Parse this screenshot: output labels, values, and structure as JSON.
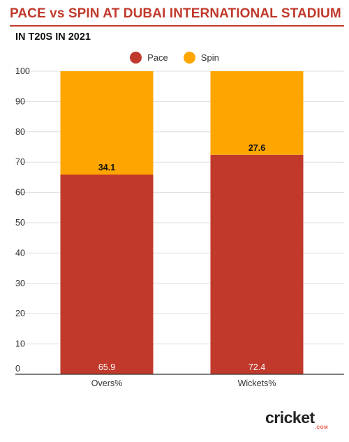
{
  "title": "PACE vs SPIN AT DUBAI INTERNATIONAL STADIUM",
  "subtitle": "IN T20S IN 2021",
  "brand": {
    "wordmark": "cricket",
    "sub": ".COM"
  },
  "colors": {
    "pace": "#c0392b",
    "spin": "#ffa500",
    "accent": "#c0392b"
  },
  "chart_data": {
    "type": "bar",
    "stacked": true,
    "categories": [
      "Overs%",
      "Wickets%"
    ],
    "series": [
      {
        "name": "Pace",
        "values": [
          65.9,
          72.4
        ],
        "color": "#c0392b"
      },
      {
        "name": "Spin",
        "values": [
          34.1,
          27.6
        ],
        "color": "#ffa500"
      }
    ],
    "data_labels": {
      "Pace": [
        "65.9",
        "72.4"
      ],
      "Spin": [
        "34.1",
        "27.6"
      ]
    },
    "ylim": [
      0,
      100
    ],
    "yticks": [
      0,
      10,
      20,
      30,
      40,
      50,
      60,
      70,
      80,
      90,
      100
    ],
    "grid": true,
    "legend_position": "top-center",
    "xlabel": "",
    "ylabel": ""
  }
}
